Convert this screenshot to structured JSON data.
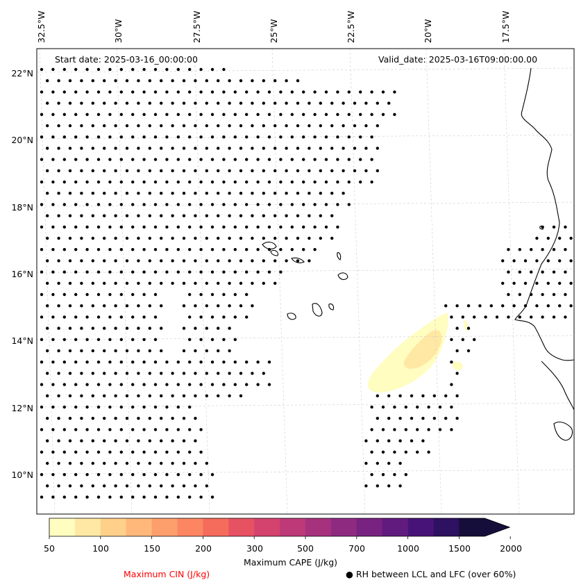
{
  "header": {
    "start_date": "Start date: 2025-03-16_00:00:00",
    "valid_date": "Valid_date: 2025-03-16T09:00:00.00"
  },
  "lon_labels": [
    "32.5°W",
    "30°W",
    "27.5°W",
    "25°W",
    "22.5°W",
    "20°W",
    "17.5°W"
  ],
  "lat_labels": [
    "22°N",
    "20°N",
    "18°N",
    "16°N",
    "14°N",
    "12°N",
    "10°N"
  ],
  "colorbar": {
    "title": "Maximum CAPE (J/kg)",
    "ticks": [
      "50",
      "100",
      "150",
      "200",
      "300",
      "500",
      "700",
      "1000",
      "1500",
      "2000"
    ],
    "colors": [
      "#fffdc0",
      "#ffe8a3",
      "#ffd08a",
      "#ffb87a",
      "#fd9f6c",
      "#fb8661",
      "#f56b5c",
      "#e75263",
      "#d3436e",
      "#bd3977",
      "#a6317d",
      "#8f2a81",
      "#782281",
      "#611b7f",
      "#481378",
      "#2e1160",
      "#160e3a"
    ],
    "extend_color": "#160e3a"
  },
  "legend": {
    "cin_label": "Maximum CIN (J/kg)",
    "cin_color": "#ff0000",
    "rh_label": "● RH between LCL and LFC (over 60%)"
  },
  "map": {
    "lon_range": [
      -33.5,
      -16.0
    ],
    "lat_range": [
      9.0,
      22.8
    ],
    "cape_regions": [
      {
        "name": "cape-50-100",
        "level": "50",
        "color": "#fffdc0"
      },
      {
        "name": "cape-100-150",
        "level": "100",
        "color": "#ffe8a3"
      }
    ],
    "rh_dot_color": "#000000"
  }
}
